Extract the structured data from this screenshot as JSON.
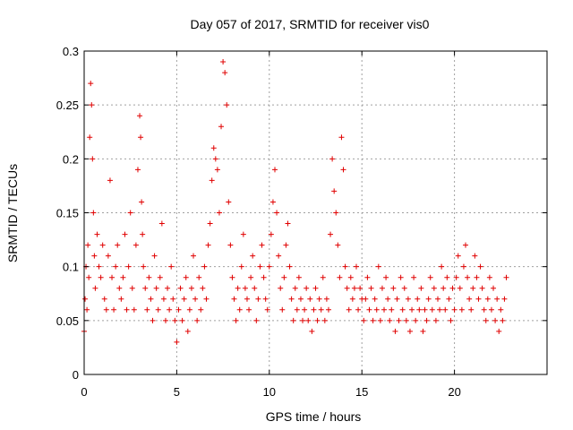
{
  "chart_data": {
    "type": "scatter",
    "title": "Day 057 of 2017, SRMTID for receiver vis0",
    "xlabel": "GPS time / hours",
    "ylabel": "SRMTID / TECUs",
    "xlim": [
      0,
      25
    ],
    "ylim": [
      0,
      0.3
    ],
    "xticks": [
      0,
      5,
      10,
      15,
      20
    ],
    "xtick_labels": [
      "0",
      "5",
      "10",
      "15",
      "20"
    ],
    "yticks": [
      0,
      0.05,
      0.1,
      0.15,
      0.2,
      0.25,
      0.3
    ],
    "ytick_labels": [
      "0",
      "0.05",
      "0.1",
      "0.15",
      "0.2",
      "0.25",
      "0.3"
    ],
    "grid": true,
    "marker": "+",
    "series": [
      {
        "name": "vis0",
        "color": "#e00000",
        "x": [
          0.0,
          0.05,
          0.1,
          0.15,
          0.2,
          0.25,
          0.3,
          0.35,
          0.4,
          0.45,
          0.5,
          0.55,
          0.6,
          0.7,
          0.8,
          0.9,
          1.0,
          1.1,
          1.2,
          1.3,
          1.4,
          1.5,
          1.6,
          1.7,
          1.8,
          1.9,
          2.0,
          2.1,
          2.2,
          2.3,
          2.4,
          2.5,
          2.6,
          2.7,
          2.8,
          2.9,
          3.0,
          3.05,
          3.1,
          3.15,
          3.2,
          3.3,
          3.4,
          3.5,
          3.6,
          3.7,
          3.8,
          3.9,
          4.0,
          4.1,
          4.2,
          4.3,
          4.4,
          4.5,
          4.6,
          4.7,
          4.8,
          4.9,
          5.0,
          5.1,
          5.2,
          5.3,
          5.4,
          5.5,
          5.6,
          5.7,
          5.8,
          5.9,
          6.0,
          6.1,
          6.2,
          6.3,
          6.4,
          6.5,
          6.6,
          6.7,
          6.8,
          6.9,
          7.0,
          7.1,
          7.2,
          7.3,
          7.4,
          7.5,
          7.6,
          7.7,
          7.8,
          7.9,
          8.0,
          8.1,
          8.2,
          8.3,
          8.4,
          8.5,
          8.6,
          8.7,
          8.8,
          8.9,
          9.0,
          9.1,
          9.2,
          9.3,
          9.4,
          9.5,
          9.6,
          9.7,
          9.8,
          9.9,
          10.0,
          10.1,
          10.2,
          10.3,
          10.4,
          10.5,
          10.6,
          10.7,
          10.8,
          10.9,
          11.0,
          11.1,
          11.2,
          11.3,
          11.4,
          11.5,
          11.6,
          11.7,
          11.8,
          11.9,
          12.0,
          12.1,
          12.2,
          12.3,
          12.4,
          12.5,
          12.6,
          12.7,
          12.8,
          12.9,
          13.0,
          13.1,
          13.2,
          13.3,
          13.4,
          13.5,
          13.6,
          13.7,
          13.8,
          13.9,
          14.0,
          14.1,
          14.2,
          14.3,
          14.4,
          14.5,
          14.6,
          14.7,
          14.8,
          14.9,
          15.0,
          15.1,
          15.2,
          15.3,
          15.4,
          15.5,
          15.6,
          15.7,
          15.8,
          15.9,
          16.0,
          16.1,
          16.2,
          16.3,
          16.4,
          16.5,
          16.6,
          16.7,
          16.8,
          16.9,
          17.0,
          17.1,
          17.2,
          17.3,
          17.4,
          17.5,
          17.6,
          17.7,
          17.8,
          17.9,
          18.0,
          18.1,
          18.2,
          18.3,
          18.4,
          18.5,
          18.6,
          18.7,
          18.8,
          18.9,
          19.0,
          19.1,
          19.2,
          19.3,
          19.4,
          19.5,
          19.6,
          19.7,
          19.8,
          19.9,
          20.0,
          20.1,
          20.2,
          20.3,
          20.4,
          20.5,
          20.6,
          20.7,
          20.8,
          20.9,
          21.0,
          21.1,
          21.2,
          21.3,
          21.4,
          21.5,
          21.6,
          21.7,
          21.8,
          21.9,
          22.0,
          22.1,
          22.2,
          22.3,
          22.4,
          22.5,
          22.6,
          22.7,
          22.8
        ],
        "y": [
          0.04,
          0.07,
          0.1,
          0.06,
          0.12,
          0.09,
          0.22,
          0.27,
          0.25,
          0.2,
          0.15,
          0.11,
          0.08,
          0.13,
          0.1,
          0.09,
          0.12,
          0.07,
          0.06,
          0.11,
          0.18,
          0.09,
          0.06,
          0.1,
          0.12,
          0.08,
          0.07,
          0.09,
          0.13,
          0.06,
          0.1,
          0.15,
          0.08,
          0.06,
          0.12,
          0.19,
          0.24,
          0.22,
          0.16,
          0.13,
          0.1,
          0.08,
          0.06,
          0.09,
          0.07,
          0.05,
          0.11,
          0.08,
          0.06,
          0.09,
          0.14,
          0.07,
          0.05,
          0.08,
          0.06,
          0.1,
          0.07,
          0.05,
          0.03,
          0.06,
          0.08,
          0.05,
          0.07,
          0.09,
          0.04,
          0.06,
          0.08,
          0.11,
          0.07,
          0.05,
          0.09,
          0.06,
          0.08,
          0.1,
          0.07,
          0.12,
          0.14,
          0.18,
          0.21,
          0.2,
          0.19,
          0.15,
          0.23,
          0.29,
          0.28,
          0.25,
          0.16,
          0.12,
          0.09,
          0.07,
          0.05,
          0.08,
          0.06,
          0.1,
          0.13,
          0.08,
          0.07,
          0.06,
          0.09,
          0.11,
          0.08,
          0.05,
          0.07,
          0.1,
          0.12,
          0.09,
          0.07,
          0.06,
          0.1,
          0.13,
          0.16,
          0.19,
          0.15,
          0.11,
          0.08,
          0.06,
          0.09,
          0.12,
          0.14,
          0.1,
          0.07,
          0.05,
          0.08,
          0.06,
          0.09,
          0.07,
          0.05,
          0.06,
          0.08,
          0.05,
          0.07,
          0.04,
          0.06,
          0.08,
          0.05,
          0.07,
          0.06,
          0.09,
          0.05,
          0.07,
          0.06,
          0.13,
          0.2,
          0.17,
          0.15,
          0.12,
          0.09,
          0.22,
          0.19,
          0.1,
          0.08,
          0.06,
          0.09,
          0.07,
          0.08,
          0.1,
          0.06,
          0.08,
          0.07,
          0.05,
          0.07,
          0.09,
          0.06,
          0.08,
          0.05,
          0.07,
          0.06,
          0.1,
          0.05,
          0.08,
          0.06,
          0.09,
          0.07,
          0.05,
          0.06,
          0.08,
          0.04,
          0.07,
          0.05,
          0.09,
          0.06,
          0.08,
          0.05,
          0.07,
          0.04,
          0.06,
          0.09,
          0.05,
          0.07,
          0.06,
          0.08,
          0.04,
          0.06,
          0.05,
          0.07,
          0.09,
          0.06,
          0.08,
          0.05,
          0.07,
          0.06,
          0.1,
          0.08,
          0.06,
          0.09,
          0.07,
          0.05,
          0.08,
          0.06,
          0.09,
          0.11,
          0.08,
          0.06,
          0.1,
          0.12,
          0.09,
          0.07,
          0.06,
          0.08,
          0.11,
          0.09,
          0.07,
          0.1,
          0.08,
          0.06,
          0.05,
          0.07,
          0.09,
          0.06,
          0.08,
          0.05,
          0.07,
          0.04,
          0.06,
          0.05,
          0.07,
          0.09
        ]
      }
    ]
  }
}
